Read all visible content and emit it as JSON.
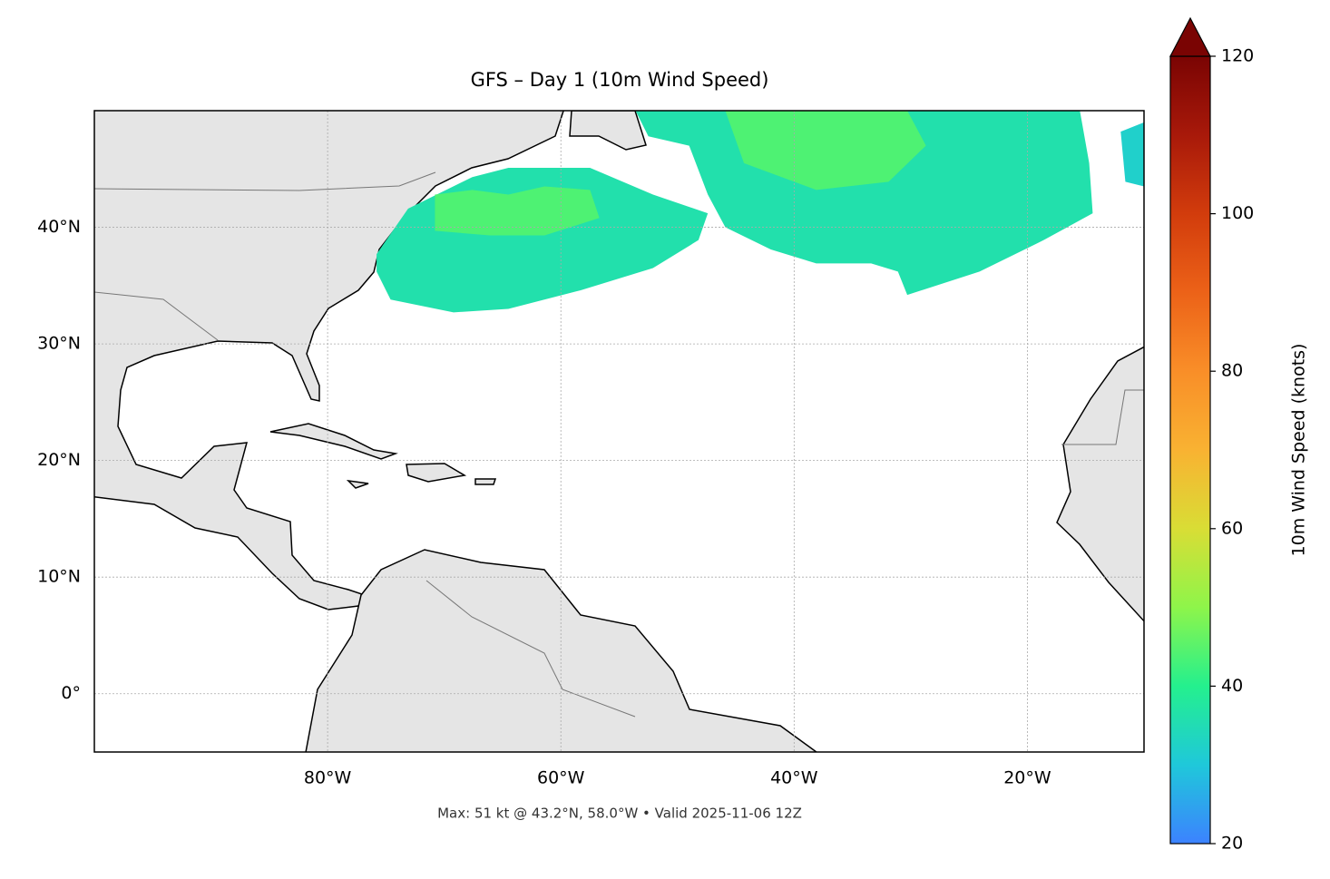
{
  "chart_data": {
    "type": "map",
    "title": "GFS – Day 1 (10m Wind Speed)",
    "annotation": "Max: 51 kt @ 43.2°N, 58.0°W • Valid 2025-11-06 12Z",
    "xlim": [
      -100,
      -10
    ],
    "ylim": [
      -5,
      50
    ],
    "xticks": [
      {
        "value": -80,
        "label": "80°W"
      },
      {
        "value": -60,
        "label": "60°W"
      },
      {
        "value": -40,
        "label": "40°W"
      },
      {
        "value": -20,
        "label": "20°W"
      }
    ],
    "yticks": [
      {
        "value": 0,
        "label": "0°"
      },
      {
        "value": 10,
        "label": "10°N"
      },
      {
        "value": 20,
        "label": "20°N"
      },
      {
        "value": 30,
        "label": "30°N"
      },
      {
        "value": 40,
        "label": "40°N"
      }
    ],
    "grid": true,
    "colorbar": {
      "label": "10m Wind Speed (knots)",
      "lim": [
        20,
        120
      ],
      "ticks": [
        20,
        40,
        60,
        80,
        100,
        120
      ]
    },
    "wind_regions": [
      {
        "lon": [
          -75.8,
          -73.1,
          -67.6,
          -64.5,
          -57.5,
          -52.1,
          -47.4,
          -48.2,
          -52.1,
          -58.3,
          -64.5,
          -69.2,
          -74.6,
          -75.8
        ],
        "lat": [
          37.7,
          41.6,
          44.3,
          45.1,
          45.1,
          42.8,
          41.2,
          38.9,
          36.5,
          34.6,
          33.0,
          32.7,
          33.8,
          36.2
        ],
        "value": 36
      },
      {
        "lon": [
          -53.6,
          -15.5,
          -14.7,
          -14.4,
          -18.6,
          -24.1,
          -30.3,
          -31.1,
          -33.4,
          -38.1,
          -42.0,
          -45.9,
          -47.4,
          -49.0,
          -52.5
        ],
        "lat": [
          50,
          50,
          45.5,
          41.2,
          38.9,
          36.2,
          34.2,
          36.2,
          36.9,
          36.9,
          38.1,
          40.0,
          42.8,
          47.0,
          47.8
        ],
        "value": 36
      },
      {
        "lon": [
          -70.8,
          -67.6,
          -64.5,
          -61.4,
          -57.5,
          -56.7,
          -61.4,
          -66.1,
          -70.8
        ],
        "lat": [
          42.8,
          43.2,
          42.8,
          43.5,
          43.2,
          40.8,
          39.3,
          39.3,
          39.7
        ],
        "value": 44
      },
      {
        "lon": [
          -45.9,
          -30.3,
          -28.7,
          -31.9,
          -38.1,
          -44.3
        ],
        "lat": [
          50,
          50,
          47.0,
          43.9,
          43.2,
          45.5
        ],
        "value": 44
      },
      {
        "lon": [
          -12.0,
          -10,
          -10,
          -11.6
        ],
        "lat": [
          48.2,
          49.0,
          43.5,
          43.9
        ],
        "value": 32
      }
    ]
  }
}
